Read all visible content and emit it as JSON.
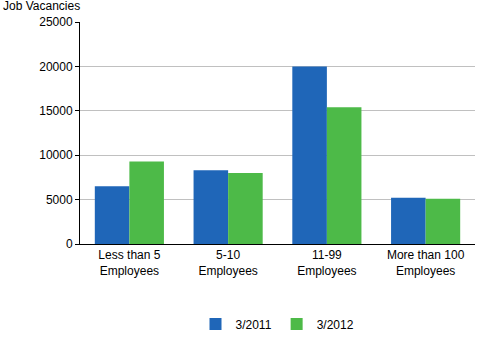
{
  "chart_data": {
    "type": "bar",
    "y_label": "Job Vacancies",
    "categories": [
      "Less than 5\nEmployees",
      "5-10\nEmployees",
      "11-99\nEmployees",
      "More than 100\nEmployees"
    ],
    "series": [
      {
        "name": "3/2011",
        "color": "#1f66b8",
        "values": [
          6500,
          8300,
          20000,
          5200
        ]
      },
      {
        "name": "3/2012",
        "color": "#4dba48",
        "values": [
          9300,
          8000,
          15400,
          5100
        ]
      }
    ],
    "ylim": [
      0,
      25000
    ],
    "yticks": [
      0,
      5000,
      10000,
      15000,
      20000,
      25000
    ],
    "grid": true,
    "legend": "bottom"
  }
}
